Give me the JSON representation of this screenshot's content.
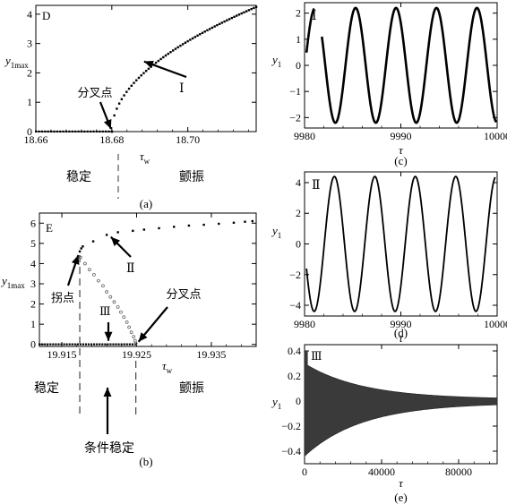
{
  "chart_data": [
    {
      "id": "a",
      "type": "scatter",
      "panel_label": "D",
      "caption": "(a)",
      "xlabel": "τ",
      "xlabel_sub": "w",
      "ylabel": "y",
      "ylabel_sub": "1max",
      "xlim": [
        18.66,
        18.718
      ],
      "ylim": [
        0,
        4.3
      ],
      "xticks": [
        "18.66",
        "18.68",
        "18.70"
      ],
      "xtick_values": [
        18.66,
        18.68,
        18.7
      ],
      "yticks": [
        "0",
        "1",
        "2",
        "3",
        "4"
      ],
      "ytick_values": [
        0,
        1,
        2,
        3,
        4
      ],
      "series": [
        {
          "style": "dots",
          "x_start": 18.66,
          "x_end": 18.68,
          "count": 26,
          "constant_y": 0
        },
        {
          "style": "dots",
          "x_start": 18.68,
          "x_end": 18.718,
          "count": 60,
          "curve": "sqrt",
          "x0": 18.68,
          "coef": 21.8
        }
      ],
      "annotations": [
        {
          "text": "分叉点",
          "kind": "arrow",
          "target": [
            18.68,
            0
          ]
        },
        {
          "text": "Ⅰ",
          "kind": "arrow",
          "target": [
            18.688,
            2.45
          ]
        }
      ],
      "region_labels": [
        "稳定",
        "颤振"
      ]
    },
    {
      "id": "b",
      "type": "scatter",
      "panel_label": "E",
      "caption": "(b)",
      "xlabel": "τ",
      "xlabel_sub": "w",
      "ylabel": "y",
      "ylabel_sub": "1max",
      "xlim": [
        19.912,
        19.941
      ],
      "ylim": [
        -0.1,
        6.5
      ],
      "xticks": [
        "19.915",
        "19.925",
        "19.935"
      ],
      "xtick_values": [
        19.915,
        19.925,
        19.935
      ],
      "yticks": [
        "0",
        "1",
        "2",
        "3",
        "4",
        "5",
        "6"
      ],
      "ytick_values": [
        0,
        1,
        2,
        3,
        4,
        5,
        6
      ],
      "series": [
        {
          "name": "stable",
          "style": "dots",
          "x_start": 19.912,
          "x_end": 19.9248,
          "count": 36,
          "constant_y": 0
        },
        {
          "name": "unstable",
          "style": "circles",
          "points": [
            [
              19.9175,
              4.3
            ],
            [
              19.9181,
              4.0
            ],
            [
              19.9187,
              3.7
            ],
            [
              19.9193,
              3.45
            ],
            [
              19.9199,
              3.15
            ],
            [
              19.9205,
              2.9
            ],
            [
              19.921,
              2.6
            ],
            [
              19.9215,
              2.35
            ],
            [
              19.922,
              2.1
            ],
            [
              19.9225,
              1.85
            ],
            [
              19.9229,
              1.6
            ],
            [
              19.9233,
              1.35
            ],
            [
              19.9237,
              1.1
            ],
            [
              19.924,
              0.85
            ],
            [
              19.9243,
              0.6
            ],
            [
              19.9246,
              0.38
            ],
            [
              19.9248,
              0.18
            ],
            [
              19.9249,
              0.05
            ]
          ]
        },
        {
          "name": "upper",
          "style": "dots",
          "points": [
            [
              19.9174,
              4.6
            ],
            [
              19.9176,
              4.75
            ],
            [
              19.9178,
              4.85
            ],
            [
              19.9192,
              5.1
            ],
            [
              19.921,
              5.42
            ],
            [
              19.9225,
              5.55
            ],
            [
              19.9245,
              5.62
            ],
            [
              19.926,
              5.68
            ],
            [
              19.928,
              5.75
            ],
            [
              19.93,
              5.82
            ],
            [
              19.932,
              5.88
            ],
            [
              19.934,
              5.92
            ],
            [
              19.936,
              5.97
            ],
            [
              19.938,
              6.02
            ],
            [
              19.9395,
              6.07
            ],
            [
              19.9405,
              6.1
            ]
          ]
        }
      ],
      "annotations": [
        {
          "text": "拐点",
          "kind": "arrow",
          "target": [
            19.9174,
            4.55
          ]
        },
        {
          "text": "Ⅱ",
          "kind": "arrow",
          "target": [
            19.9213,
            5.45
          ]
        },
        {
          "text": "Ⅲ",
          "kind": "arrow",
          "target": [
            19.9225,
            0.05
          ]
        },
        {
          "text": "分叉点",
          "kind": "arrow",
          "target": [
            19.9249,
            0
          ]
        },
        {
          "text": "条件稳定",
          "kind": "arrow-up"
        }
      ],
      "region_labels": [
        "稳定",
        "颤振"
      ]
    },
    {
      "id": "c",
      "type": "line",
      "panel_label": "Ⅰ",
      "caption": "(c)",
      "xlabel": "τ",
      "ylabel": "y",
      "ylabel_sub": "1",
      "xlim": [
        9980,
        10000
      ],
      "ylim": [
        -2.4,
        2.4
      ],
      "xticks": [
        "9980",
        "9990",
        "10000"
      ],
      "xtick_values": [
        9980,
        9990,
        10000
      ],
      "yticks": [
        "2",
        "1",
        "0",
        "−1",
        "−2"
      ],
      "ytick_values": [
        2,
        1,
        0,
        -1,
        -2
      ],
      "signal": {
        "amplitude": 2.2,
        "period": 4.2,
        "phase_at_min": 9983.2,
        "x_start": 9980.2,
        "x_end": 9999.9,
        "gap": [
          9981.0,
          9981.8
        ]
      }
    },
    {
      "id": "d",
      "type": "line",
      "panel_label": "Ⅱ",
      "caption": "(d)",
      "xlabel": "τ",
      "ylabel": "y",
      "ylabel_sub": "1",
      "xlim": [
        9980,
        10000
      ],
      "ylim": [
        -4.7,
        4.7
      ],
      "xticks": [
        "9980",
        "9990",
        "10000"
      ],
      "xtick_values": [
        9980,
        9990,
        10000
      ],
      "yticks": [
        "4",
        "2",
        "0",
        "−2",
        "−4"
      ],
      "ytick_values": [
        4,
        2,
        0,
        -2,
        -4
      ],
      "signal": {
        "amplitude": 4.4,
        "period": 4.2,
        "phase_at_min": 9981.0,
        "x_start": 9980.2,
        "x_end": 9999.8
      }
    },
    {
      "id": "e",
      "type": "area",
      "panel_label": "Ⅲ",
      "caption": "(e)",
      "xlabel": "τ",
      "ylabel": "y",
      "ylabel_sub": "1",
      "xlim": [
        0,
        100000
      ],
      "ylim": [
        -0.5,
        0.45
      ],
      "xticks": [
        "0",
        "40000",
        "80000"
      ],
      "xtick_values": [
        0,
        40000,
        80000
      ],
      "yticks": [
        "0.4",
        "0.2",
        "0",
        "−0.2",
        "−0.4"
      ],
      "ytick_values": [
        0.4,
        0.2,
        0,
        -0.2,
        -0.4
      ],
      "envelope": {
        "upper_start": 0.3,
        "lower_start": -0.44,
        "decay_x": 30000,
        "floor": 0.015,
        "spike_x": 1500,
        "spike_y": 0.4
      }
    }
  ]
}
